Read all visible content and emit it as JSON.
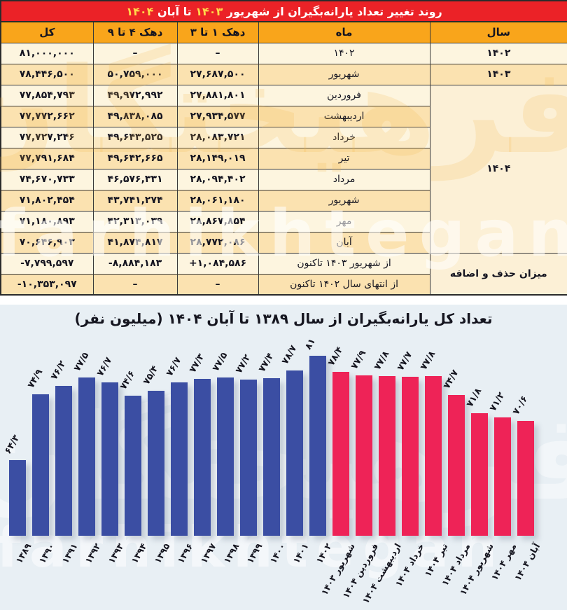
{
  "table": {
    "title": {
      "t1": "روند تغییر تعداد یارانه‌بگیران از شهریور",
      "n1": "۱۴۰۳",
      "t2": "تا آبان",
      "n2": "۱۴۰۴"
    },
    "headers": [
      "سال",
      "ماه",
      "دهک ۱ تا ۳",
      "دهک ۴ تا ۹",
      "کل"
    ],
    "year_spans": [
      {
        "label": "۱۴۰۲",
        "rows": 1
      },
      {
        "label": "۱۴۰۳",
        "rows": 1
      },
      {
        "label": "۱۴۰۴",
        "rows": 8
      },
      {
        "label": "میزان حذف و اضافه",
        "rows": 2
      }
    ],
    "rows": [
      {
        "month": "۱۴۰۲",
        "d13": "–",
        "d49": "–",
        "total": "۸۱,۰۰۰,۰۰۰"
      },
      {
        "month": "شهریور",
        "d13": "۲۷,۶۸۷,۵۰۰",
        "d49": "۵۰,۷۵۹,۰۰۰",
        "total": "۷۸,۴۴۶,۵۰۰"
      },
      {
        "month": "فروردین",
        "d13": "۲۷,۸۸۱,۸۰۱",
        "d49": "۴۹,۹۷۲,۹۹۲",
        "total": "۷۷,۸۵۴,۷۹۳"
      },
      {
        "month": "اردیبهشت",
        "d13": "۲۷,۹۳۴,۵۷۷",
        "d49": "۴۹,۸۳۸,۰۸۵",
        "total": "۷۷,۷۷۲,۶۶۲"
      },
      {
        "month": "خرداد",
        "d13": "۲۸,۰۸۳,۷۲۱",
        "d49": "۴۹,۶۴۳,۵۲۵",
        "total": "۷۷,۷۲۷,۲۴۶"
      },
      {
        "month": "تیر",
        "d13": "۲۸,۱۴۹,۰۱۹",
        "d49": "۴۹,۶۴۲,۶۶۵",
        "total": "۷۷,۷۹۱,۶۸۴"
      },
      {
        "month": "مرداد",
        "d13": "۲۸,۰۹۴,۴۰۲",
        "d49": "۴۶,۵۷۶,۳۳۱",
        "total": "۷۴,۶۷۰,۷۳۳"
      },
      {
        "month": "شهریور",
        "d13": "۲۸,۰۶۱,۱۸۰",
        "d49": "۴۳,۷۴۱,۲۷۴",
        "total": "۷۱,۸۰۲,۴۵۴"
      },
      {
        "month": "مهر",
        "d13": "۲۸,۸۶۷,۸۵۴",
        "d49": "۴۲,۳۱۳,۰۳۹",
        "total": "۷۱,۱۸۰,۸۹۳"
      },
      {
        "month": "آبان",
        "d13": "۲۸,۷۷۲,۰۸۶",
        "d49": "۴۱,۸۷۴,۸۱۷",
        "total": "۷۰,۶۴۶,۹۰۳"
      },
      {
        "month": "از شهریور ۱۴۰۳ تاکنون",
        "d13": "+۱,۰۸۴,۵۸۶",
        "d49": "-۸,۸۸۴,۱۸۳",
        "total": "-۷,۷۹۹,۵۹۷"
      },
      {
        "month": "از انتهای سال ۱۴۰۲ تاکنون",
        "d13": "–",
        "d49": "–",
        "total": "-۱۰,۳۵۳,۰۹۷"
      }
    ]
  },
  "chart_data": {
    "type": "bar",
    "title": "تعداد کل یارانه‌بگیران از سال ۱۳۸۹ تا آبان ۱۴۰۴ (میلیون نفر)",
    "categories": [
      "۱۳۸۹",
      "۱۳۹۰",
      "۱۳۹۱",
      "۱۳۹۲",
      "۱۳۹۳",
      "۱۳۹۴",
      "۱۳۹۵",
      "۱۳۹۶",
      "۱۳۹۷",
      "۱۳۹۸",
      "۱۳۹۹",
      "۱۴۰۰",
      "۱۴۰۱",
      "۱۴۰۲",
      "شهریور ۱۴۰۳",
      "فروردین ۱۴۰۴",
      "اردیبهشت ۱۴۰۴",
      "خرداد ۱۴۰۴",
      "تیر ۱۴۰۴",
      "مرداد ۱۴۰۴",
      "شهریور ۱۴۰۴",
      "مهر ۱۴۰۴",
      "آبان ۱۴۰۴"
    ],
    "values": [
      64.3,
      74.9,
      76.2,
      77.5,
      76.7,
      74.6,
      75.4,
      76.7,
      77.3,
      77.5,
      77.2,
      77.4,
      78.7,
      81,
      78.4,
      77.9,
      77.8,
      77.7,
      77.8,
      74.7,
      71.8,
      71.2,
      70.6
    ],
    "value_labels": [
      "۶۴/۳",
      "۷۴/۹",
      "۷۶/۲",
      "۷۷/۵",
      "۷۶/۷",
      "۷۴/۶",
      "۷۵/۴",
      "۷۶/۷",
      "۷۷/۳",
      "۷۷/۵",
      "۷۷/۲",
      "۷۷/۴",
      "۷۸/۷",
      "۸۱",
      "۷۸/۴",
      "۷۷/۹",
      "۷۷/۸",
      "۷۷/۷",
      "۷۷/۸",
      "۷۴/۷",
      "۷۱/۸",
      "۷۱/۲",
      "۷۰/۶"
    ],
    "series_split_index": 14,
    "colors": {
      "year_bars": "#3B4EA3",
      "month_bars": "#EE2357",
      "background": "#E8EFF4"
    },
    "xlabel": "",
    "ylabel": "میلیون نفر",
    "ylim": [
      52,
      82
    ],
    "grid": false,
    "legend": "none"
  },
  "watermark": {
    "fa": "فرهیختگان",
    "en": "farhikhtegan"
  }
}
